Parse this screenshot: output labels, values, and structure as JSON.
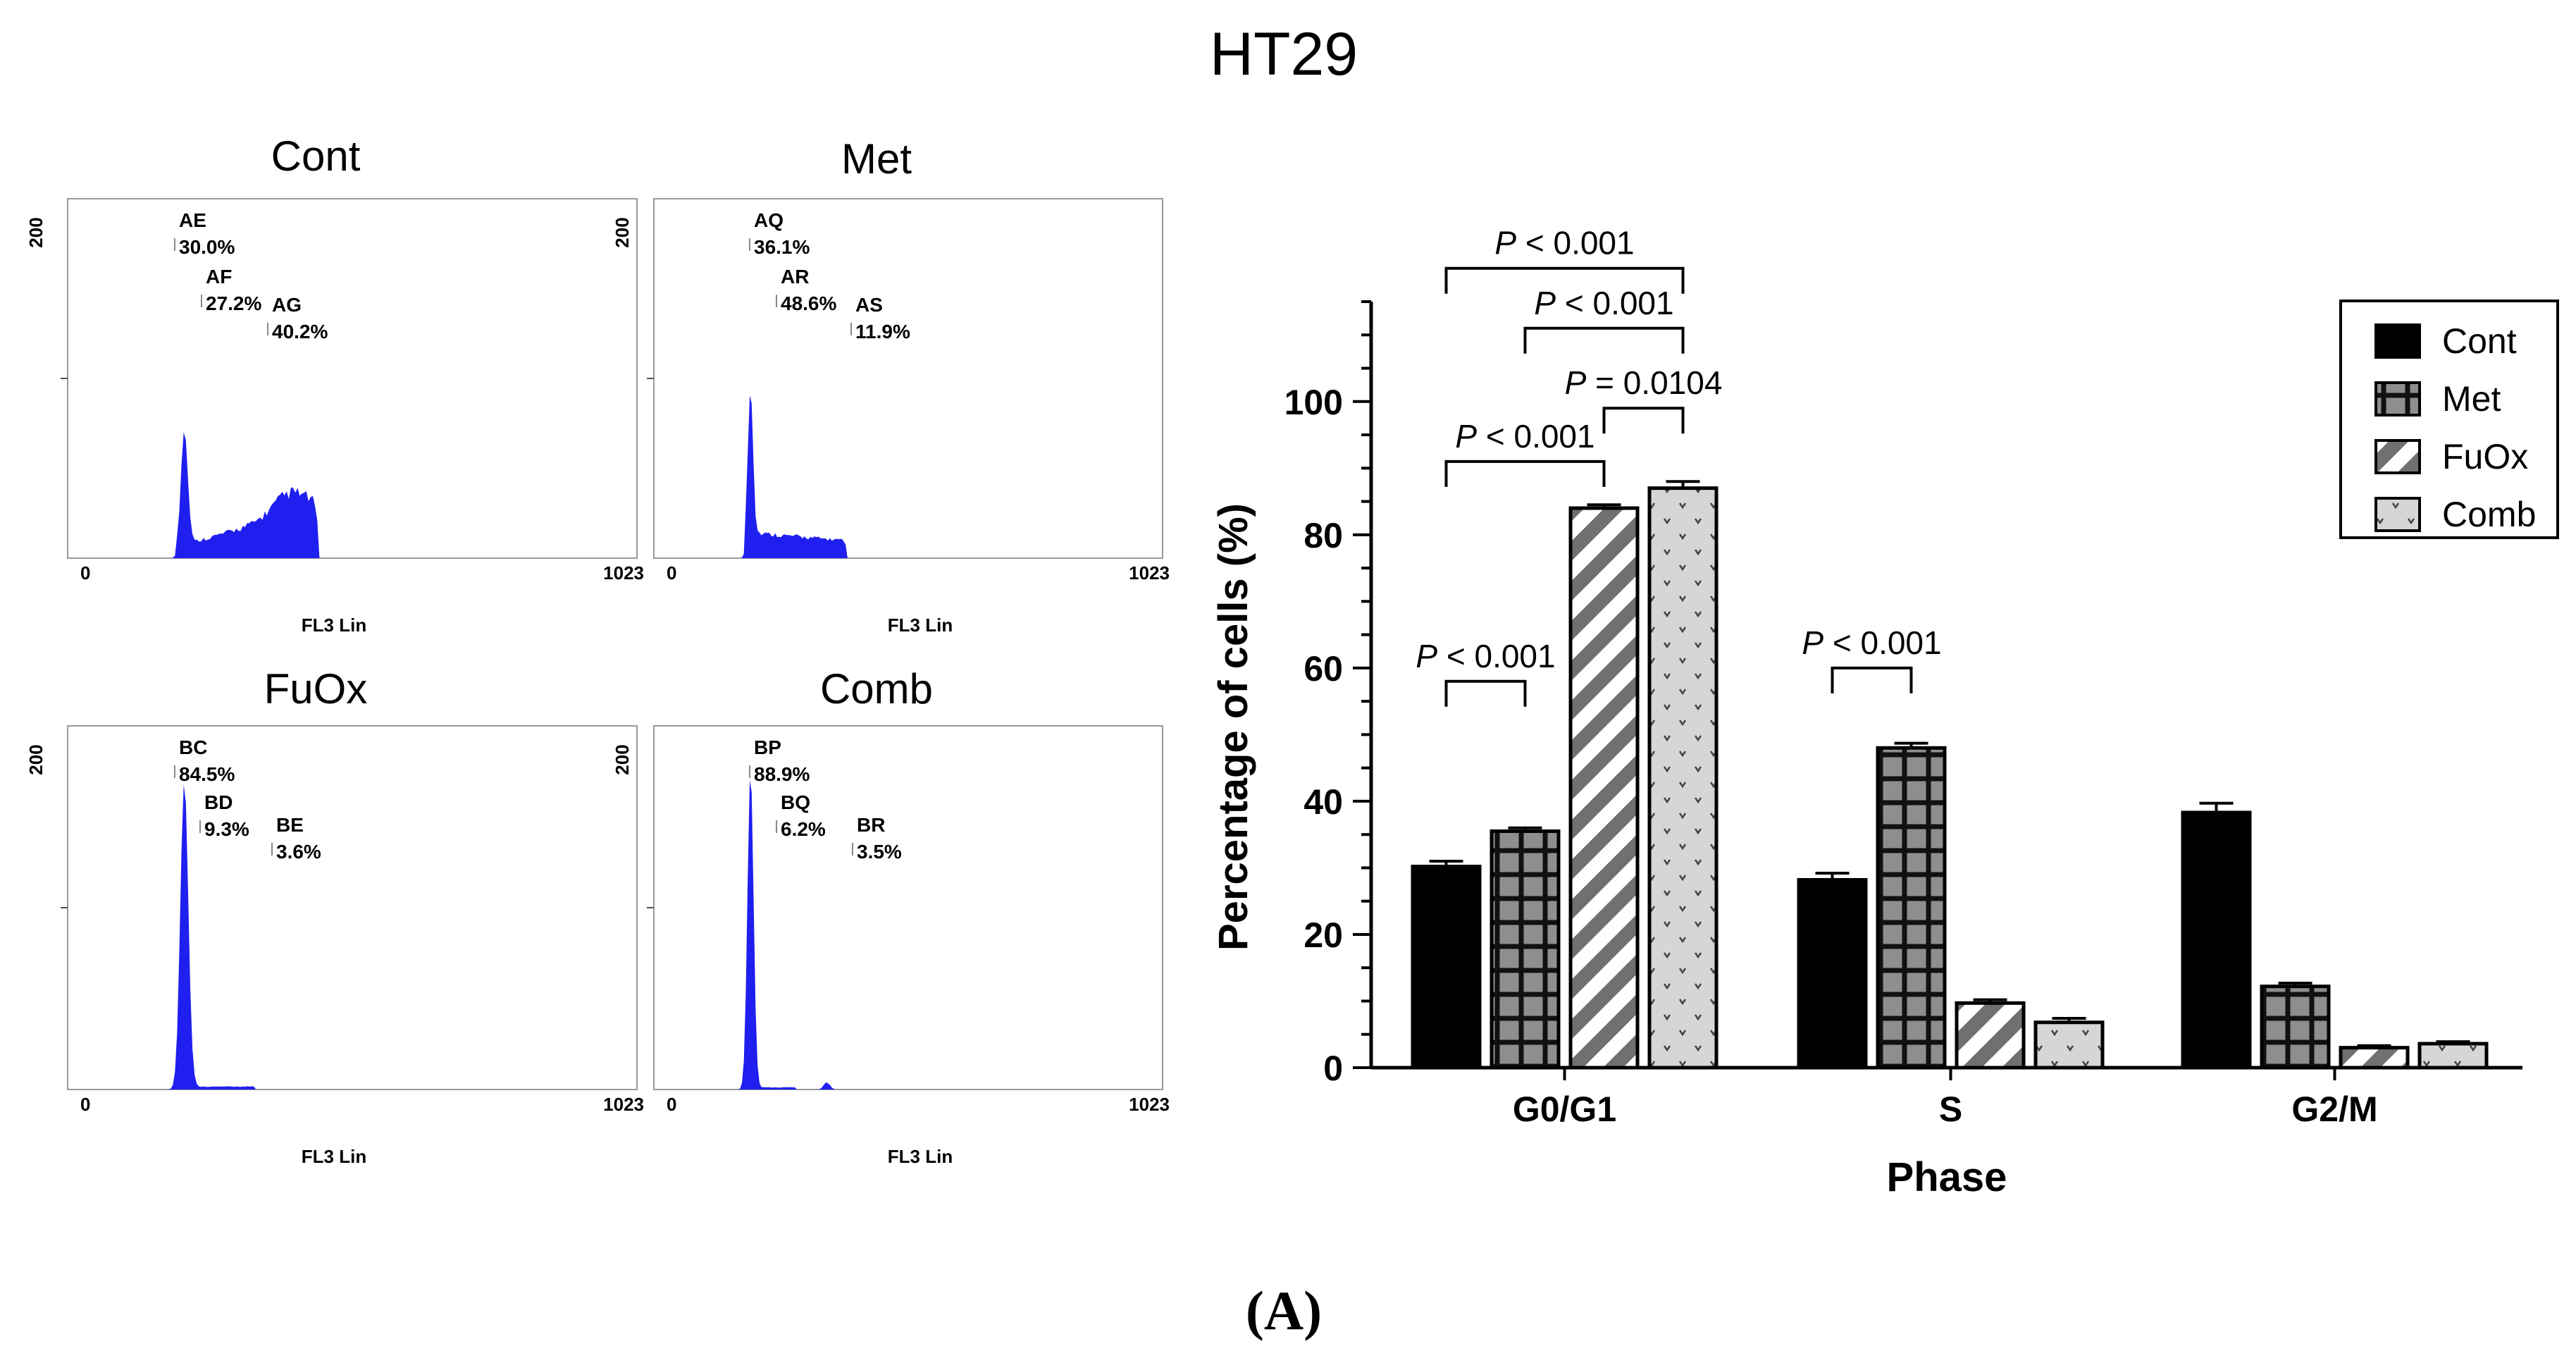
{
  "figure": {
    "title": "HT29",
    "caption": "(A)"
  },
  "histograms": [
    {
      "title": "Cont",
      "y_tick_top": "200",
      "x_min_label": "0",
      "x_max_label": "1023",
      "x_axis_label": "FL3 Lin",
      "gates": [
        {
          "name": "AE",
          "percent": "30.0%"
        },
        {
          "name": "AF",
          "percent": "27.2%"
        },
        {
          "name": "AG",
          "percent": "40.2%"
        }
      ],
      "profile": "cont"
    },
    {
      "title": "Met",
      "y_tick_top": "200",
      "x_min_label": "0",
      "x_max_label": "1023",
      "x_axis_label": "FL3 Lin",
      "gates": [
        {
          "name": "AQ",
          "percent": "36.1%"
        },
        {
          "name": "AR",
          "percent": "48.6%"
        },
        {
          "name": "AS",
          "percent": "11.9%"
        }
      ],
      "profile": "met"
    },
    {
      "title": "FuOx",
      "y_tick_top": "200",
      "x_min_label": "0",
      "x_max_label": "1023",
      "x_axis_label": "FL3 Lin",
      "gates": [
        {
          "name": "BC",
          "percent": "84.5%"
        },
        {
          "name": "BD",
          "percent": "9.3%"
        },
        {
          "name": "BE",
          "percent": "3.6%"
        }
      ],
      "profile": "fuox"
    },
    {
      "title": "Comb",
      "y_tick_top": "200",
      "x_min_label": "0",
      "x_max_label": "1023",
      "x_axis_label": "FL3 Lin",
      "gates": [
        {
          "name": "BP",
          "percent": "88.9%"
        },
        {
          "name": "BQ",
          "percent": "6.2%"
        },
        {
          "name": "BR",
          "percent": "3.5%"
        }
      ],
      "profile": "comb"
    }
  ],
  "chart_data": {
    "type": "bar",
    "title": "",
    "xlabel": "Phase",
    "ylabel": "Percentage of cells (%)",
    "ylim": [
      0,
      115
    ],
    "yticks": [
      0,
      20,
      40,
      60,
      80,
      100
    ],
    "legend_position": "top-right",
    "categories": [
      "G0/G1",
      "S",
      "G2/M"
    ],
    "series": [
      {
        "name": "Cont",
        "pattern": "solid",
        "values": [
          30.2,
          28.2,
          38.3
        ],
        "errors": [
          0.8,
          1.0,
          1.4
        ]
      },
      {
        "name": "Met",
        "pattern": "grid",
        "values": [
          35.5,
          48.0,
          12.2
        ],
        "errors": [
          0.5,
          0.7,
          0.5
        ]
      },
      {
        "name": "FuOx",
        "pattern": "diagonal",
        "values": [
          84.0,
          9.7,
          3.0
        ],
        "errors": [
          0.5,
          0.5,
          0.3
        ]
      },
      {
        "name": "Comb",
        "pattern": "dotted",
        "values": [
          87.0,
          6.8,
          3.6
        ],
        "errors": [
          1.0,
          0.6,
          0.3
        ]
      }
    ],
    "significance": [
      {
        "label": "P < 0.001",
        "category": 0,
        "from_series": 0,
        "to_series": 3,
        "y": 120
      },
      {
        "label": "P < 0.001",
        "category": 0,
        "from_series": 1,
        "to_series": 3,
        "y": 111
      },
      {
        "label": "P = 0.0104",
        "category": 0,
        "from_series": 2,
        "to_series": 3,
        "y": 99
      },
      {
        "label": "P < 0.001",
        "category": 0,
        "from_series": 0,
        "to_series": 2,
        "y": 91
      },
      {
        "label": "P < 0.001",
        "category": 0,
        "from_series": 0,
        "to_series": 1,
        "y": 58
      },
      {
        "label": "P < 0.001",
        "category": 1,
        "from_series": 0,
        "to_series": 1,
        "y": 60
      }
    ]
  }
}
